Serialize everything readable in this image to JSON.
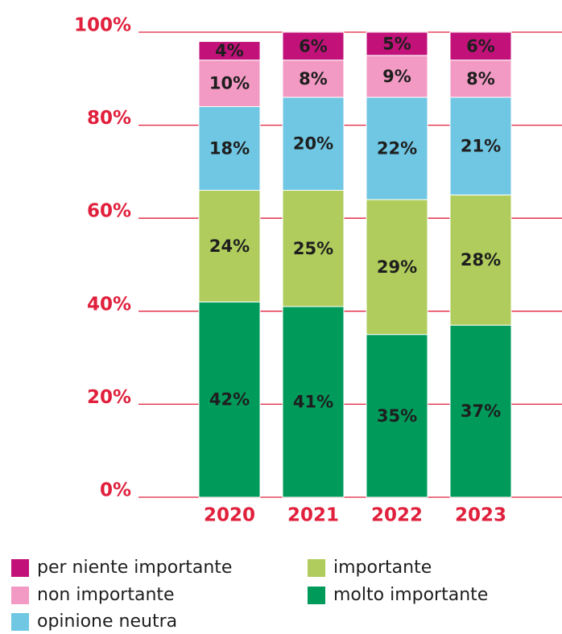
{
  "chart_data": {
    "type": "stacked_bar",
    "categories": [
      "2020",
      "2021",
      "2022",
      "2023"
    ],
    "series": [
      {
        "name": "molto importante",
        "color": "#009a5b",
        "values": [
          42,
          41,
          35,
          37
        ],
        "value_labels": [
          "42%",
          "41%",
          "35%",
          "37%"
        ]
      },
      {
        "name": "importante",
        "color": "#afcc5c",
        "values": [
          24,
          25,
          29,
          28
        ],
        "value_labels": [
          "24%",
          "25%",
          "29%",
          "28%"
        ]
      },
      {
        "name": "opinione neutra",
        "color": "#6fc7e3",
        "values": [
          18,
          20,
          22,
          21
        ],
        "value_labels": [
          "18%",
          "20%",
          "22%",
          "21%"
        ]
      },
      {
        "name": "non importante",
        "color": "#f29ac3",
        "values": [
          10,
          8,
          9,
          8
        ],
        "value_labels": [
          "10%",
          "8%",
          "9%",
          "8%"
        ]
      },
      {
        "name": "per niente importante",
        "color": "#c2127a",
        "values": [
          4,
          6,
          5,
          6
        ],
        "value_labels": [
          "4%",
          "6%",
          "5%",
          "6%"
        ]
      }
    ],
    "ylim": [
      0,
      100
    ],
    "yticks": [
      {
        "value": 0,
        "label": "0%"
      },
      {
        "value": 20,
        "label": "20%"
      },
      {
        "value": 40,
        "label": "40%"
      },
      {
        "value": 60,
        "label": "60%"
      },
      {
        "value": 80,
        "label": "80%"
      },
      {
        "value": 100,
        "label": "100%"
      }
    ],
    "grid": true
  }
}
